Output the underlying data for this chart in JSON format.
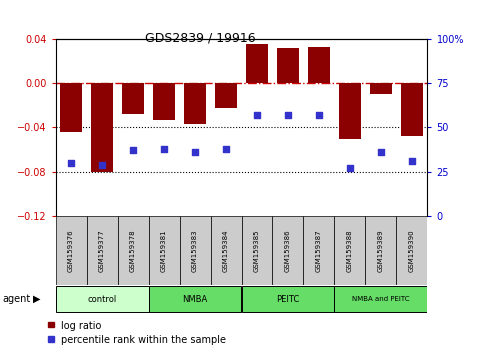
{
  "title": "GDS2839 / 19916",
  "samples": [
    "GSM159376",
    "GSM159377",
    "GSM159378",
    "GSM159381",
    "GSM159383",
    "GSM159384",
    "GSM159385",
    "GSM159386",
    "GSM159387",
    "GSM159388",
    "GSM159389",
    "GSM159390"
  ],
  "log_ratio": [
    -0.044,
    -0.08,
    -0.028,
    -0.033,
    -0.037,
    -0.022,
    0.035,
    0.032,
    0.033,
    -0.05,
    -0.01,
    -0.048
  ],
  "percentile": [
    30,
    29,
    37,
    38,
    36,
    38,
    57,
    57,
    57,
    27,
    36,
    31
  ],
  "ylim_left": [
    -0.12,
    0.04
  ],
  "ylim_right": [
    0,
    100
  ],
  "yticks_left": [
    -0.12,
    -0.08,
    -0.04,
    0.0,
    0.04
  ],
  "yticks_right": [
    0,
    25,
    50,
    75,
    100
  ],
  "bar_color": "#8B0000",
  "dot_color": "#3333CC",
  "hline_color": "#CC0000",
  "dotted_line_color": "#000000",
  "groups": [
    {
      "label": "control",
      "start": 0,
      "end": 3,
      "color": "#ccffcc"
    },
    {
      "label": "NMBA",
      "start": 3,
      "end": 6,
      "color": "#66dd66"
    },
    {
      "label": "PEITC",
      "start": 6,
      "end": 9,
      "color": "#66dd66"
    },
    {
      "label": "NMBA and PEITC",
      "start": 9,
      "end": 12,
      "color": "#66dd66"
    }
  ],
  "agent_label": "agent",
  "legend_bar_label": "log ratio",
  "legend_dot_label": "percentile rank within the sample",
  "tick_color_left": "#CC0000",
  "tick_color_right": "#0000CC"
}
